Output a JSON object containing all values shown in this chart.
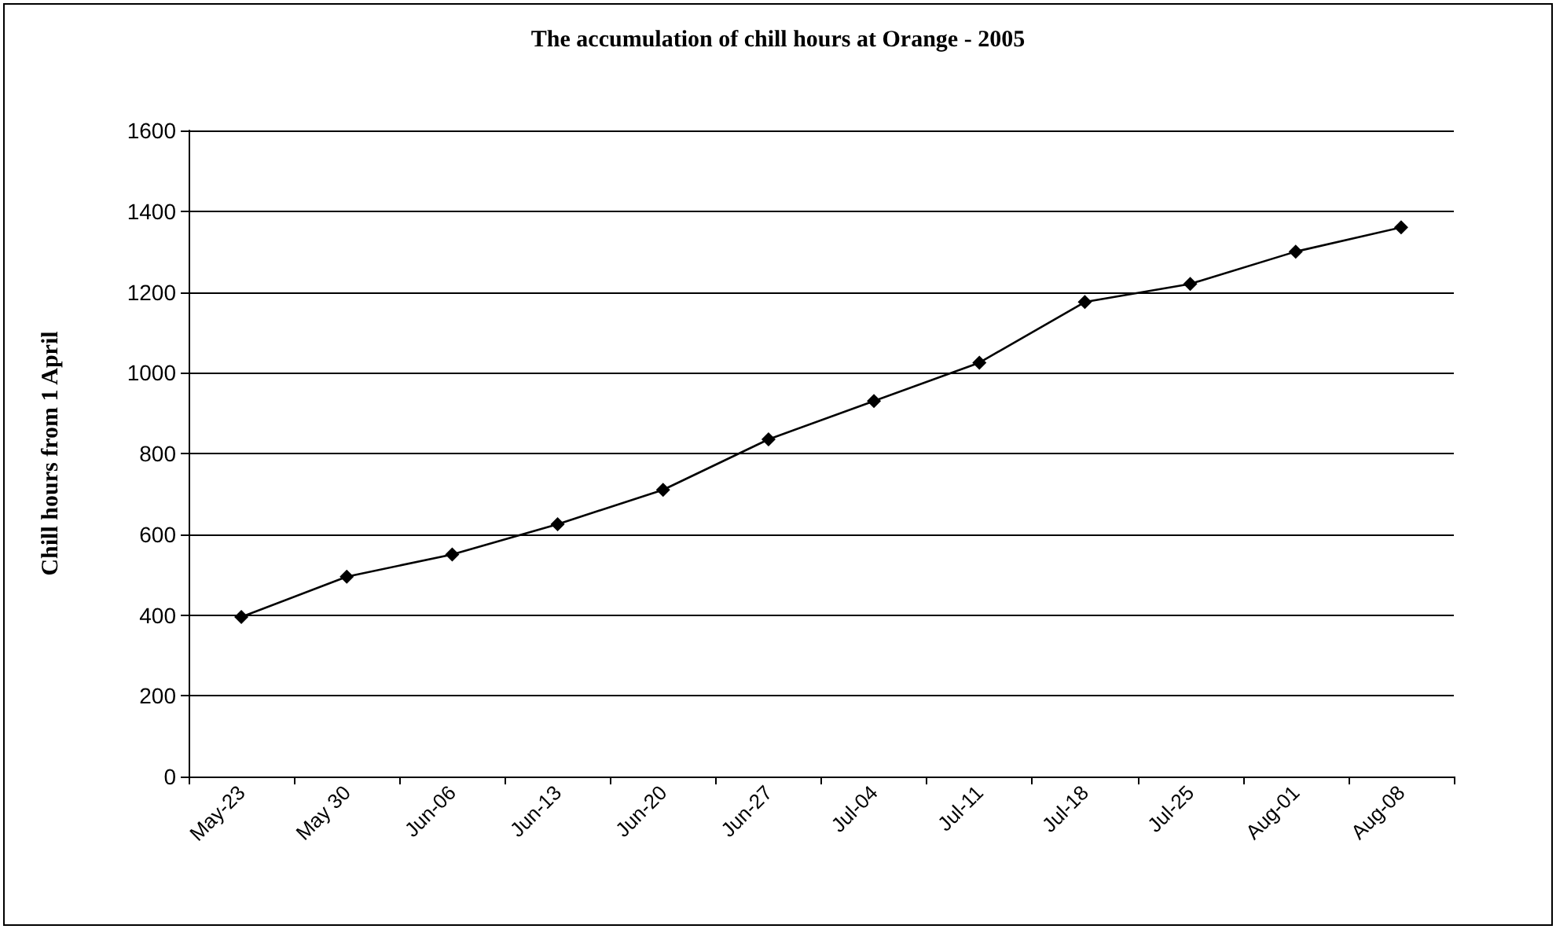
{
  "chart_data": {
    "type": "line",
    "title": "The accumulation of chill hours at Orange - 2005",
    "ylabel": "Chill hours from 1 April",
    "categories": [
      "May-23",
      "May 30",
      "Jun-06",
      "Jun-13",
      "Jun-20",
      "Jun-27",
      "Jul-04",
      "Jul-11",
      "Jul-18",
      "Jul-25",
      "Aug-01",
      "Aug-08"
    ],
    "series": [
      {
        "color": "#000000",
        "values": [
          395,
          495,
          550,
          625,
          710,
          835,
          930,
          1025,
          1175,
          1220,
          1300,
          1360
        ]
      }
    ],
    "ylim": [
      0,
      1600
    ],
    "yticks": [
      0,
      200,
      400,
      600,
      800,
      1000,
      1200,
      1400,
      1600
    ],
    "grid": "y",
    "marker": "diamond",
    "line_style": "solid"
  }
}
